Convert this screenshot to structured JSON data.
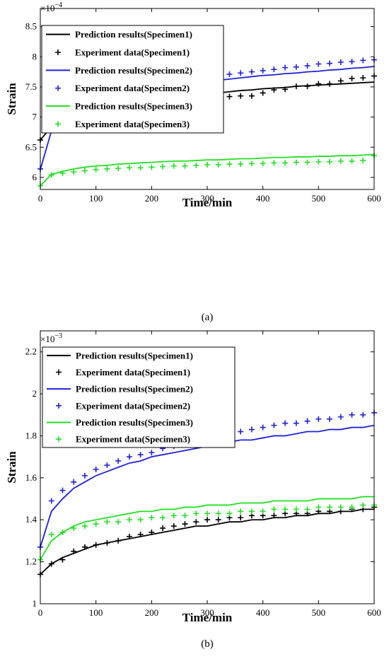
{
  "colors": {
    "specimen1": "#000000",
    "specimen2": "#2020d8",
    "specimen3": "#22e022"
  },
  "chart_data": [
    {
      "type": "line",
      "caption": "(a)",
      "xlabel": "Time/min",
      "ylabel": "Strain",
      "scale_base": "×10",
      "scale_exponent": "−4",
      "xlim": [
        0,
        600
      ],
      "ylim": [
        5.8,
        8.8
      ],
      "xticks": [
        0,
        100,
        200,
        300,
        400,
        500,
        600
      ],
      "yticks": [
        6,
        6.5,
        7,
        7.5,
        8,
        8.5
      ],
      "ytick_labels": [
        "6",
        "6.5",
        "7",
        "7.5",
        "8",
        "8.5"
      ],
      "legend_position": "top-left",
      "x": [
        0,
        20,
        40,
        60,
        80,
        100,
        120,
        140,
        160,
        180,
        200,
        220,
        240,
        260,
        280,
        300,
        320,
        340,
        360,
        380,
        400,
        420,
        440,
        460,
        480,
        500,
        520,
        540,
        560,
        580,
        600
      ],
      "series": [
        {
          "name": "Prediction results(Specimen1)",
          "kind": "line",
          "color_key": "specimen1",
          "values": [
            6.62,
            6.84,
            6.92,
            6.99,
            7.05,
            7.1,
            7.14,
            7.18,
            7.21,
            7.24,
            7.27,
            7.29,
            7.32,
            7.34,
            7.36,
            7.38,
            7.4,
            7.42,
            7.44,
            7.45,
            7.47,
            7.48,
            7.49,
            7.51,
            7.52,
            7.53,
            7.54,
            7.55,
            7.56,
            7.57,
            7.58
          ]
        },
        {
          "name": "Experiment data(Specimen1)",
          "kind": "marker",
          "color_key": "specimen1",
          "values": [
            6.62,
            6.85,
            6.83,
            6.97,
            7.05,
            7.1,
            7.18,
            7.2,
            7.2,
            7.23,
            7.23,
            7.25,
            7.27,
            7.27,
            7.32,
            7.33,
            7.34,
            7.34,
            7.35,
            7.35,
            7.4,
            7.45,
            7.46,
            7.51,
            7.51,
            7.55,
            7.55,
            7.6,
            7.64,
            7.65,
            7.68
          ]
        },
        {
          "name": "Prediction results(Specimen2)",
          "kind": "line",
          "color_key": "specimen2",
          "values": [
            6.13,
            6.77,
            6.92,
            7.04,
            7.13,
            7.2,
            7.26,
            7.31,
            7.36,
            7.4,
            7.44,
            7.47,
            7.5,
            7.53,
            7.56,
            7.58,
            7.61,
            7.63,
            7.65,
            7.67,
            7.69,
            7.7,
            7.72,
            7.73,
            7.75,
            7.76,
            7.78,
            7.79,
            7.81,
            7.82,
            7.84
          ]
        },
        {
          "name": "Experiment data(Specimen2)",
          "kind": "marker",
          "color_key": "specimen2",
          "values": [
            6.14,
            6.9,
            7.03,
            7.1,
            7.17,
            7.23,
            7.3,
            7.33,
            7.38,
            7.43,
            7.48,
            7.52,
            7.56,
            7.59,
            7.63,
            7.67,
            7.68,
            7.71,
            7.73,
            7.75,
            7.77,
            7.79,
            7.82,
            7.83,
            7.85,
            7.88,
            7.89,
            7.91,
            7.92,
            7.94,
            7.95
          ]
        },
        {
          "name": "Prediction results(Specimen3)",
          "kind": "line",
          "color_key": "specimen3",
          "values": [
            5.86,
            6.05,
            6.1,
            6.14,
            6.17,
            6.19,
            6.2,
            6.22,
            6.23,
            6.24,
            6.25,
            6.26,
            6.27,
            6.27,
            6.28,
            6.29,
            6.29,
            6.3,
            6.31,
            6.31,
            6.32,
            6.33,
            6.33,
            6.34,
            6.34,
            6.35,
            6.35,
            6.36,
            6.36,
            6.37,
            6.38
          ]
        },
        {
          "name": "Experiment data(Specimen3)",
          "kind": "marker",
          "color_key": "specimen3",
          "values": [
            5.86,
            6.04,
            6.07,
            6.09,
            6.11,
            6.13,
            6.14,
            6.15,
            6.16,
            6.16,
            6.17,
            6.18,
            6.19,
            6.19,
            6.2,
            6.21,
            6.21,
            6.22,
            6.22,
            6.23,
            6.23,
            6.24,
            6.24,
            6.25,
            6.25,
            6.26,
            6.26,
            6.27,
            6.27,
            6.28,
            6.36
          ]
        }
      ]
    },
    {
      "type": "line",
      "caption": "(b)",
      "xlabel": "Time/min",
      "ylabel": "Strain",
      "scale_base": "×10",
      "scale_exponent": "−3",
      "xlim": [
        0,
        600
      ],
      "ylim": [
        1.0,
        2.3
      ],
      "xticks": [
        0,
        100,
        200,
        300,
        400,
        500,
        600
      ],
      "yticks": [
        1,
        1.2,
        1.4,
        1.6,
        1.8,
        2,
        2.2
      ],
      "ytick_labels": [
        "1",
        "1.2",
        "1.4",
        "1.6",
        "1.8",
        "2",
        "2.2"
      ],
      "legend_position": "top-left",
      "x": [
        0,
        20,
        40,
        60,
        80,
        100,
        120,
        140,
        160,
        180,
        200,
        220,
        240,
        260,
        280,
        300,
        320,
        340,
        360,
        380,
        400,
        420,
        440,
        460,
        480,
        500,
        520,
        540,
        560,
        580,
        600
      ],
      "series": [
        {
          "name": "Prediction results(Specimen1)",
          "kind": "line",
          "color_key": "specimen1",
          "values": [
            1.14,
            1.19,
            1.22,
            1.24,
            1.26,
            1.28,
            1.29,
            1.3,
            1.31,
            1.32,
            1.33,
            1.34,
            1.35,
            1.36,
            1.37,
            1.37,
            1.38,
            1.39,
            1.39,
            1.4,
            1.4,
            1.41,
            1.41,
            1.42,
            1.42,
            1.43,
            1.43,
            1.44,
            1.44,
            1.45,
            1.45
          ]
        },
        {
          "name": "Experiment data(Specimen1)",
          "kind": "marker",
          "color_key": "specimen1",
          "values": [
            1.14,
            1.19,
            1.21,
            1.25,
            1.27,
            1.28,
            1.29,
            1.3,
            1.32,
            1.33,
            1.34,
            1.36,
            1.37,
            1.38,
            1.39,
            1.4,
            1.4,
            1.41,
            1.41,
            1.42,
            1.42,
            1.42,
            1.43,
            1.43,
            1.43,
            1.44,
            1.44,
            1.44,
            1.45,
            1.45,
            1.46
          ]
        },
        {
          "name": "Prediction results(Specimen2)",
          "kind": "line",
          "color_key": "specimen2",
          "values": [
            1.27,
            1.44,
            1.5,
            1.55,
            1.58,
            1.61,
            1.63,
            1.65,
            1.67,
            1.68,
            1.7,
            1.71,
            1.72,
            1.73,
            1.74,
            1.75,
            1.76,
            1.77,
            1.78,
            1.78,
            1.79,
            1.8,
            1.8,
            1.81,
            1.82,
            1.82,
            1.83,
            1.83,
            1.84,
            1.84,
            1.85
          ]
        },
        {
          "name": "Experiment data(Specimen2)",
          "kind": "marker",
          "color_key": "specimen2",
          "values": [
            1.27,
            1.49,
            1.54,
            1.58,
            1.61,
            1.64,
            1.66,
            1.68,
            1.7,
            1.71,
            1.72,
            1.74,
            1.75,
            1.76,
            1.77,
            1.78,
            1.79,
            1.8,
            1.82,
            1.83,
            1.84,
            1.85,
            1.86,
            1.86,
            1.87,
            1.88,
            1.88,
            1.89,
            1.9,
            1.9,
            1.91
          ]
        },
        {
          "name": "Prediction results(Specimen3)",
          "kind": "line",
          "color_key": "specimen3",
          "values": [
            1.21,
            1.3,
            1.34,
            1.37,
            1.39,
            1.4,
            1.41,
            1.42,
            1.43,
            1.44,
            1.44,
            1.45,
            1.45,
            1.46,
            1.46,
            1.47,
            1.47,
            1.47,
            1.48,
            1.48,
            1.48,
            1.49,
            1.49,
            1.49,
            1.49,
            1.5,
            1.5,
            1.5,
            1.5,
            1.51,
            1.51
          ]
        },
        {
          "name": "Experiment data(Specimen3)",
          "kind": "marker",
          "color_key": "specimen3",
          "values": [
            1.21,
            1.33,
            1.34,
            1.36,
            1.37,
            1.38,
            1.39,
            1.39,
            1.4,
            1.4,
            1.41,
            1.41,
            1.42,
            1.42,
            1.43,
            1.43,
            1.43,
            1.43,
            1.44,
            1.44,
            1.44,
            1.45,
            1.45,
            1.45,
            1.45,
            1.46,
            1.46,
            1.46,
            1.46,
            1.47,
            1.47
          ]
        }
      ]
    }
  ]
}
